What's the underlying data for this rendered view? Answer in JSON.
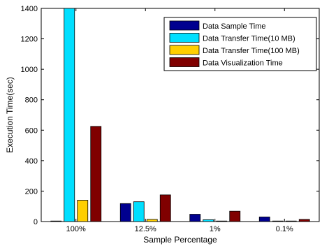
{
  "chart_data": {
    "type": "bar",
    "title": "",
    "xlabel": "Sample Percentage",
    "ylabel": "Execution Time(sec)",
    "ylim": [
      0,
      1400
    ],
    "yticks": [
      0,
      200,
      400,
      600,
      800,
      1000,
      1200,
      1400
    ],
    "categories": [
      "100%",
      "12.5%",
      "1%",
      "0.1%"
    ],
    "series": [
      {
        "name": "Data Sample Time",
        "color": "#00008f",
        "values": [
          0,
          118,
          48,
          30
        ]
      },
      {
        "name": "Data Transfer Time(10 MB)",
        "color": "#00dfff",
        "values": [
          1400,
          130,
          12,
          2
        ]
      },
      {
        "name": "Data Transfer Time(100 MB)",
        "color": "#ffcf00",
        "values": [
          140,
          14,
          2,
          1
        ]
      },
      {
        "name": "Data Visualization Time",
        "color": "#800000",
        "values": [
          625,
          175,
          68,
          14
        ]
      }
    ],
    "legend_position": "top-right",
    "grid": false
  }
}
